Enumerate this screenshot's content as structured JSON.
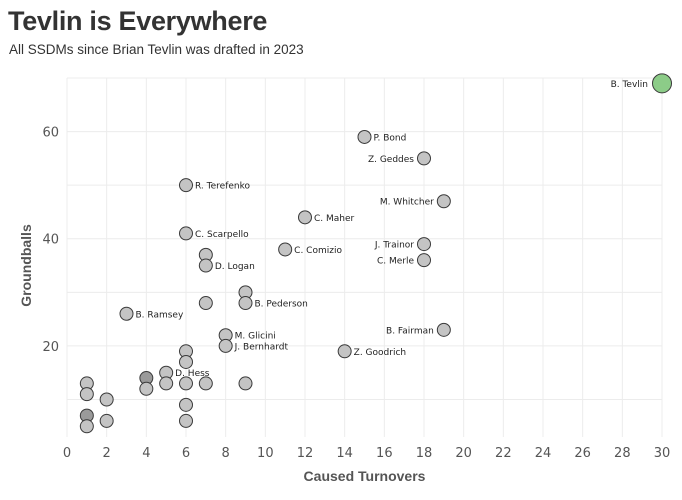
{
  "header": {
    "title": "Tevlin is Everywhere",
    "subtitle": "All SSDMs since Brian Tevlin was drafted in 2023"
  },
  "colors": {
    "point_fill": "#c4c4c4",
    "point_overlap_fill": "#9a9a9a",
    "point_stroke": "#3a3a3a",
    "highlight_fill": "#8ccc88",
    "grid": "#ececec",
    "text": "#333333"
  },
  "chart_data": {
    "type": "scatter",
    "title": "Tevlin is Everywhere",
    "subtitle": "All SSDMs since Brian Tevlin was drafted in 2023",
    "xlabel": "Caused Turnovers",
    "ylabel": "Groundballs",
    "xlim": [
      0,
      30
    ],
    "ylim": [
      3,
      70
    ],
    "xticks": [
      0,
      2,
      4,
      6,
      8,
      10,
      12,
      14,
      16,
      18,
      20,
      22,
      24,
      26,
      28,
      30
    ],
    "yticks": [
      20,
      40,
      60
    ],
    "grid": true,
    "highlight": "B. Tevlin",
    "points": [
      {
        "x": 30,
        "y": 69,
        "label": "B. Tevlin"
      },
      {
        "x": 15,
        "y": 59,
        "label": "P. Bond"
      },
      {
        "x": 18,
        "y": 55,
        "label": "Z. Geddes"
      },
      {
        "x": 6,
        "y": 50,
        "label": "R. Terefenko"
      },
      {
        "x": 19,
        "y": 47,
        "label": "M. Whitcher"
      },
      {
        "x": 12,
        "y": 44,
        "label": "C. Maher"
      },
      {
        "x": 6,
        "y": 41,
        "label": "C. Scarpello"
      },
      {
        "x": 18,
        "y": 39,
        "label": "J. Trainor"
      },
      {
        "x": 11,
        "y": 38,
        "label": "C. Comizio"
      },
      {
        "x": 7,
        "y": 37,
        "label": ""
      },
      {
        "x": 18,
        "y": 36,
        "label": "C. Merle"
      },
      {
        "x": 7,
        "y": 35,
        "label": "D. Logan"
      },
      {
        "x": 9,
        "y": 30,
        "label": ""
      },
      {
        "x": 7,
        "y": 28,
        "label": ""
      },
      {
        "x": 9,
        "y": 28,
        "label": "B. Pederson"
      },
      {
        "x": 3,
        "y": 26,
        "label": "B. Ramsey"
      },
      {
        "x": 19,
        "y": 23,
        "label": "B. Fairman"
      },
      {
        "x": 8,
        "y": 22,
        "label": "M. Glicini"
      },
      {
        "x": 8,
        "y": 20,
        "label": "J. Bernhardt"
      },
      {
        "x": 14,
        "y": 19,
        "label": "Z. Goodrich"
      },
      {
        "x": 6,
        "y": 19,
        "label": ""
      },
      {
        "x": 6,
        "y": 17,
        "label": ""
      },
      {
        "x": 5,
        "y": 15,
        "label": "D. Hess"
      },
      {
        "x": 4,
        "y": 14,
        "label": ""
      },
      {
        "x": 4,
        "y": 14,
        "label": ""
      },
      {
        "x": 5,
        "y": 13,
        "label": ""
      },
      {
        "x": 6,
        "y": 13,
        "label": ""
      },
      {
        "x": 7,
        "y": 13,
        "label": ""
      },
      {
        "x": 9,
        "y": 13,
        "label": ""
      },
      {
        "x": 1,
        "y": 13,
        "label": ""
      },
      {
        "x": 4,
        "y": 12,
        "label": ""
      },
      {
        "x": 1,
        "y": 11,
        "label": ""
      },
      {
        "x": 2,
        "y": 10,
        "label": ""
      },
      {
        "x": 6,
        "y": 9,
        "label": ""
      },
      {
        "x": 1,
        "y": 7,
        "label": ""
      },
      {
        "x": 1,
        "y": 7,
        "label": ""
      },
      {
        "x": 2,
        "y": 6,
        "label": ""
      },
      {
        "x": 6,
        "y": 6,
        "label": ""
      },
      {
        "x": 1,
        "y": 5,
        "label": ""
      }
    ]
  }
}
